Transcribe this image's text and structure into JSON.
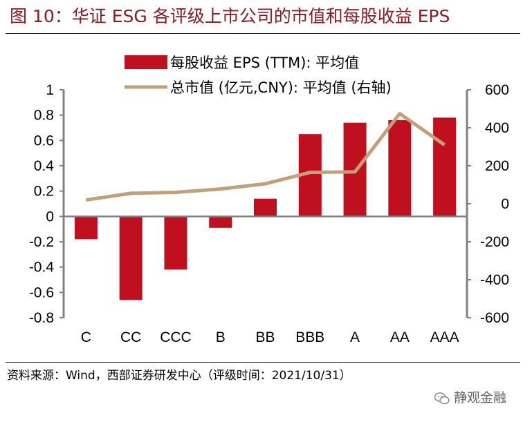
{
  "header": {
    "title": "图 10：华证 ESG 各评级上市公司的市值和每股收益 EPS"
  },
  "footer": {
    "source": "资料来源：Wind，西部证券研发中心（评级时间：2021/10/31）",
    "watermark": "静观金融"
  },
  "colors": {
    "bar": "#c01020",
    "line": "#c4a07a",
    "axis": "#808080",
    "title": "#8b1a22"
  },
  "chart_data": {
    "type": "bar",
    "categories": [
      "C",
      "CC",
      "CCC",
      "B",
      "BB",
      "BBB",
      "A",
      "AA",
      "AAA"
    ],
    "series": [
      {
        "name": "每股收益 EPS (TTM): 平均值",
        "type": "bar",
        "axis": "left",
        "values": [
          -0.18,
          -0.66,
          -0.42,
          -0.09,
          0.14,
          0.65,
          0.74,
          0.76,
          0.78
        ]
      },
      {
        "name": "总市值 (亿元,CNY): 平均值 (右轴)",
        "type": "line",
        "axis": "right",
        "values": [
          20,
          55,
          60,
          78,
          105,
          165,
          168,
          475,
          310
        ]
      }
    ],
    "ylim": [
      -0.8,
      1
    ],
    "yticks": [
      "1",
      "0.8",
      "0.6",
      "0.4",
      "0.2",
      "0",
      "-0.2",
      "-0.4",
      "-0.6",
      "-0.8"
    ],
    "y2lim": [
      -600,
      600
    ],
    "y2ticks": [
      "600",
      "400",
      "200",
      "0",
      "-200",
      "-400",
      "-600"
    ],
    "legend": "top-center",
    "grid": false
  }
}
